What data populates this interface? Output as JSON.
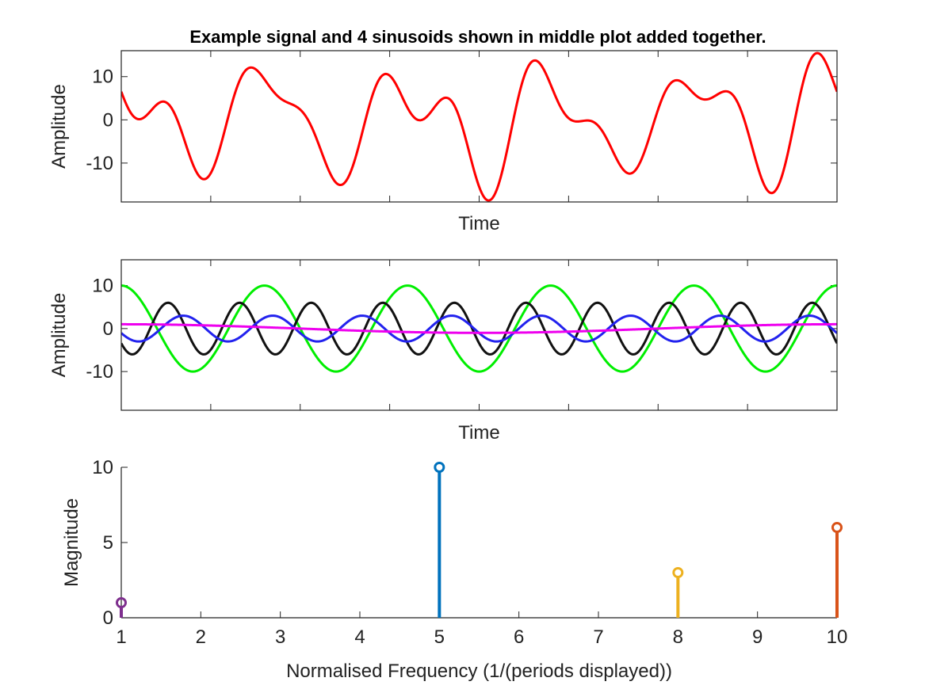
{
  "figure": {
    "title": "Example signal and 4 sinusoids shown in middle plot added together."
  },
  "chart_data": [
    {
      "type": "line",
      "xlabel": "Time",
      "ylabel": "Amplitude",
      "xlim": [
        0,
        4
      ],
      "ylim": [
        -19,
        16
      ],
      "yticks": [
        -10,
        0,
        10
      ],
      "xticks_labeled": false,
      "series": [
        {
          "color": "#ff0000",
          "components": [
            {
              "amp": 10,
              "cycles": 5,
              "phase": 1.5708
            },
            {
              "amp": 3,
              "cycles": 8,
              "phase": 3.5
            },
            {
              "amp": 6,
              "cycles": 10,
              "phase": 3.75
            },
            {
              "amp": 1,
              "cycles": 1,
              "phase": 1.5708
            }
          ]
        }
      ]
    },
    {
      "type": "line",
      "xlabel": "Time",
      "ylabel": "Amplitude",
      "xlim": [
        0,
        4
      ],
      "ylim": [
        -19,
        16
      ],
      "yticks": [
        -10,
        0,
        10
      ],
      "xticks_labeled": false,
      "series": [
        {
          "color": "#00ee00",
          "amplitude": 10,
          "cycles": 5,
          "phase": 1.5708
        },
        {
          "color": "#111111",
          "amplitude": 6,
          "cycles": 10,
          "phase": 3.75
        },
        {
          "color": "#2222ee",
          "amplitude": 3,
          "cycles": 8,
          "phase": 3.5
        },
        {
          "color": "#ee00ee",
          "amplitude": 1,
          "cycles": 1,
          "phase": 1.5708
        }
      ]
    },
    {
      "type": "stem",
      "xlabel": "Normalised Frequency (1/(periods displayed))",
      "ylabel": "Magnitude",
      "xlim": [
        1,
        10
      ],
      "ylim": [
        0,
        10
      ],
      "xticks": [
        1,
        2,
        3,
        4,
        5,
        6,
        7,
        8,
        9,
        10
      ],
      "yticks": [
        0,
        5,
        10
      ],
      "points": [
        {
          "x": 1,
          "y": 1,
          "color": "#7e2f8e"
        },
        {
          "x": 5,
          "y": 10,
          "color": "#0072bd"
        },
        {
          "x": 8,
          "y": 3,
          "color": "#edb120"
        },
        {
          "x": 10,
          "y": 6,
          "color": "#d95319"
        }
      ]
    }
  ]
}
